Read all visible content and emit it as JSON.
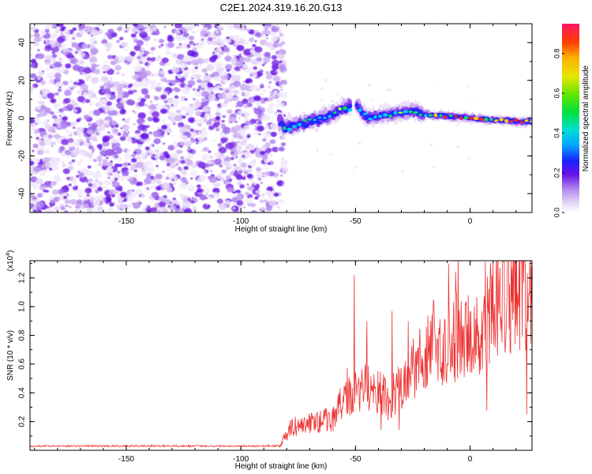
{
  "title": "C2E1.2024.319.16.20.G13",
  "chart_data": [
    {
      "type": "heatmap",
      "xlabel": "Height of straight line (km)",
      "ylabel": "Frequency (Hz)",
      "xlim": [
        -192,
        27
      ],
      "ylim": [
        -50,
        50
      ],
      "xticks": [
        -150,
        -100,
        -50,
        0
      ],
      "yticks": [
        40,
        20,
        0,
        -20,
        -40
      ],
      "noise_region": [
        -192,
        -82
      ],
      "ridge": [
        {
          "x": -82,
          "y": -5
        },
        {
          "x": -70,
          "y": -2
        },
        {
          "x": -60,
          "y": 2
        },
        {
          "x": -50,
          "y": 8
        },
        {
          "x": -45,
          "y": 0
        },
        {
          "x": -35,
          "y": 2
        },
        {
          "x": -25,
          "y": 4
        },
        {
          "x": -20,
          "y": 2
        },
        {
          "x": -10,
          "y": 1
        },
        {
          "x": 0,
          "y": 0
        },
        {
          "x": 10,
          "y": -1
        },
        {
          "x": 27,
          "y": -2
        }
      ],
      "colorbar": {
        "label": "Normalized spectral amplitude",
        "ticks": [
          "0.0",
          "0.2",
          "0.4",
          "0.6",
          "0.8"
        ],
        "range": [
          0,
          0.95
        ]
      }
    },
    {
      "type": "line",
      "xlabel": "Height of straight line (km)",
      "ylabel": "SNR (10 * v/v)",
      "scale_label": "(x10",
      "scale_exponent": "4",
      "scale_suffix": ")",
      "xlim": [
        -192,
        27
      ],
      "ylim": [
        0,
        1.32
      ],
      "xticks": [
        -150,
        -100,
        -50,
        0
      ],
      "yticks": [
        "0.2",
        "0.4",
        "0.6",
        "0.8",
        "1.0",
        "1.2"
      ],
      "color": "#ee3333",
      "envelope": [
        {
          "x": -192,
          "y": 0.03
        },
        {
          "x": -83,
          "y": 0.03
        },
        {
          "x": -78,
          "y": 0.16
        },
        {
          "x": -60,
          "y": 0.22
        },
        {
          "x": -55,
          "y": 0.35
        },
        {
          "x": -45,
          "y": 0.45
        },
        {
          "x": -35,
          "y": 0.35
        },
        {
          "x": -25,
          "y": 0.55
        },
        {
          "x": -15,
          "y": 0.75
        },
        {
          "x": -5,
          "y": 0.8
        },
        {
          "x": 5,
          "y": 0.9
        },
        {
          "x": 15,
          "y": 1.1
        },
        {
          "x": 27,
          "y": 1.2
        }
      ],
      "peaks": [
        {
          "x": -50.5,
          "y": 1.22
        },
        {
          "x": -45,
          "y": 0.9
        },
        {
          "x": -34,
          "y": 0.97
        },
        {
          "x": -27,
          "y": 0.9
        },
        {
          "x": -16,
          "y": 1.05
        },
        {
          "x": -9.5,
          "y": 1.3
        },
        {
          "x": -6,
          "y": 1.1
        },
        {
          "x": 13,
          "y": 1.27
        },
        {
          "x": 26,
          "y": 1.28
        }
      ]
    }
  ]
}
